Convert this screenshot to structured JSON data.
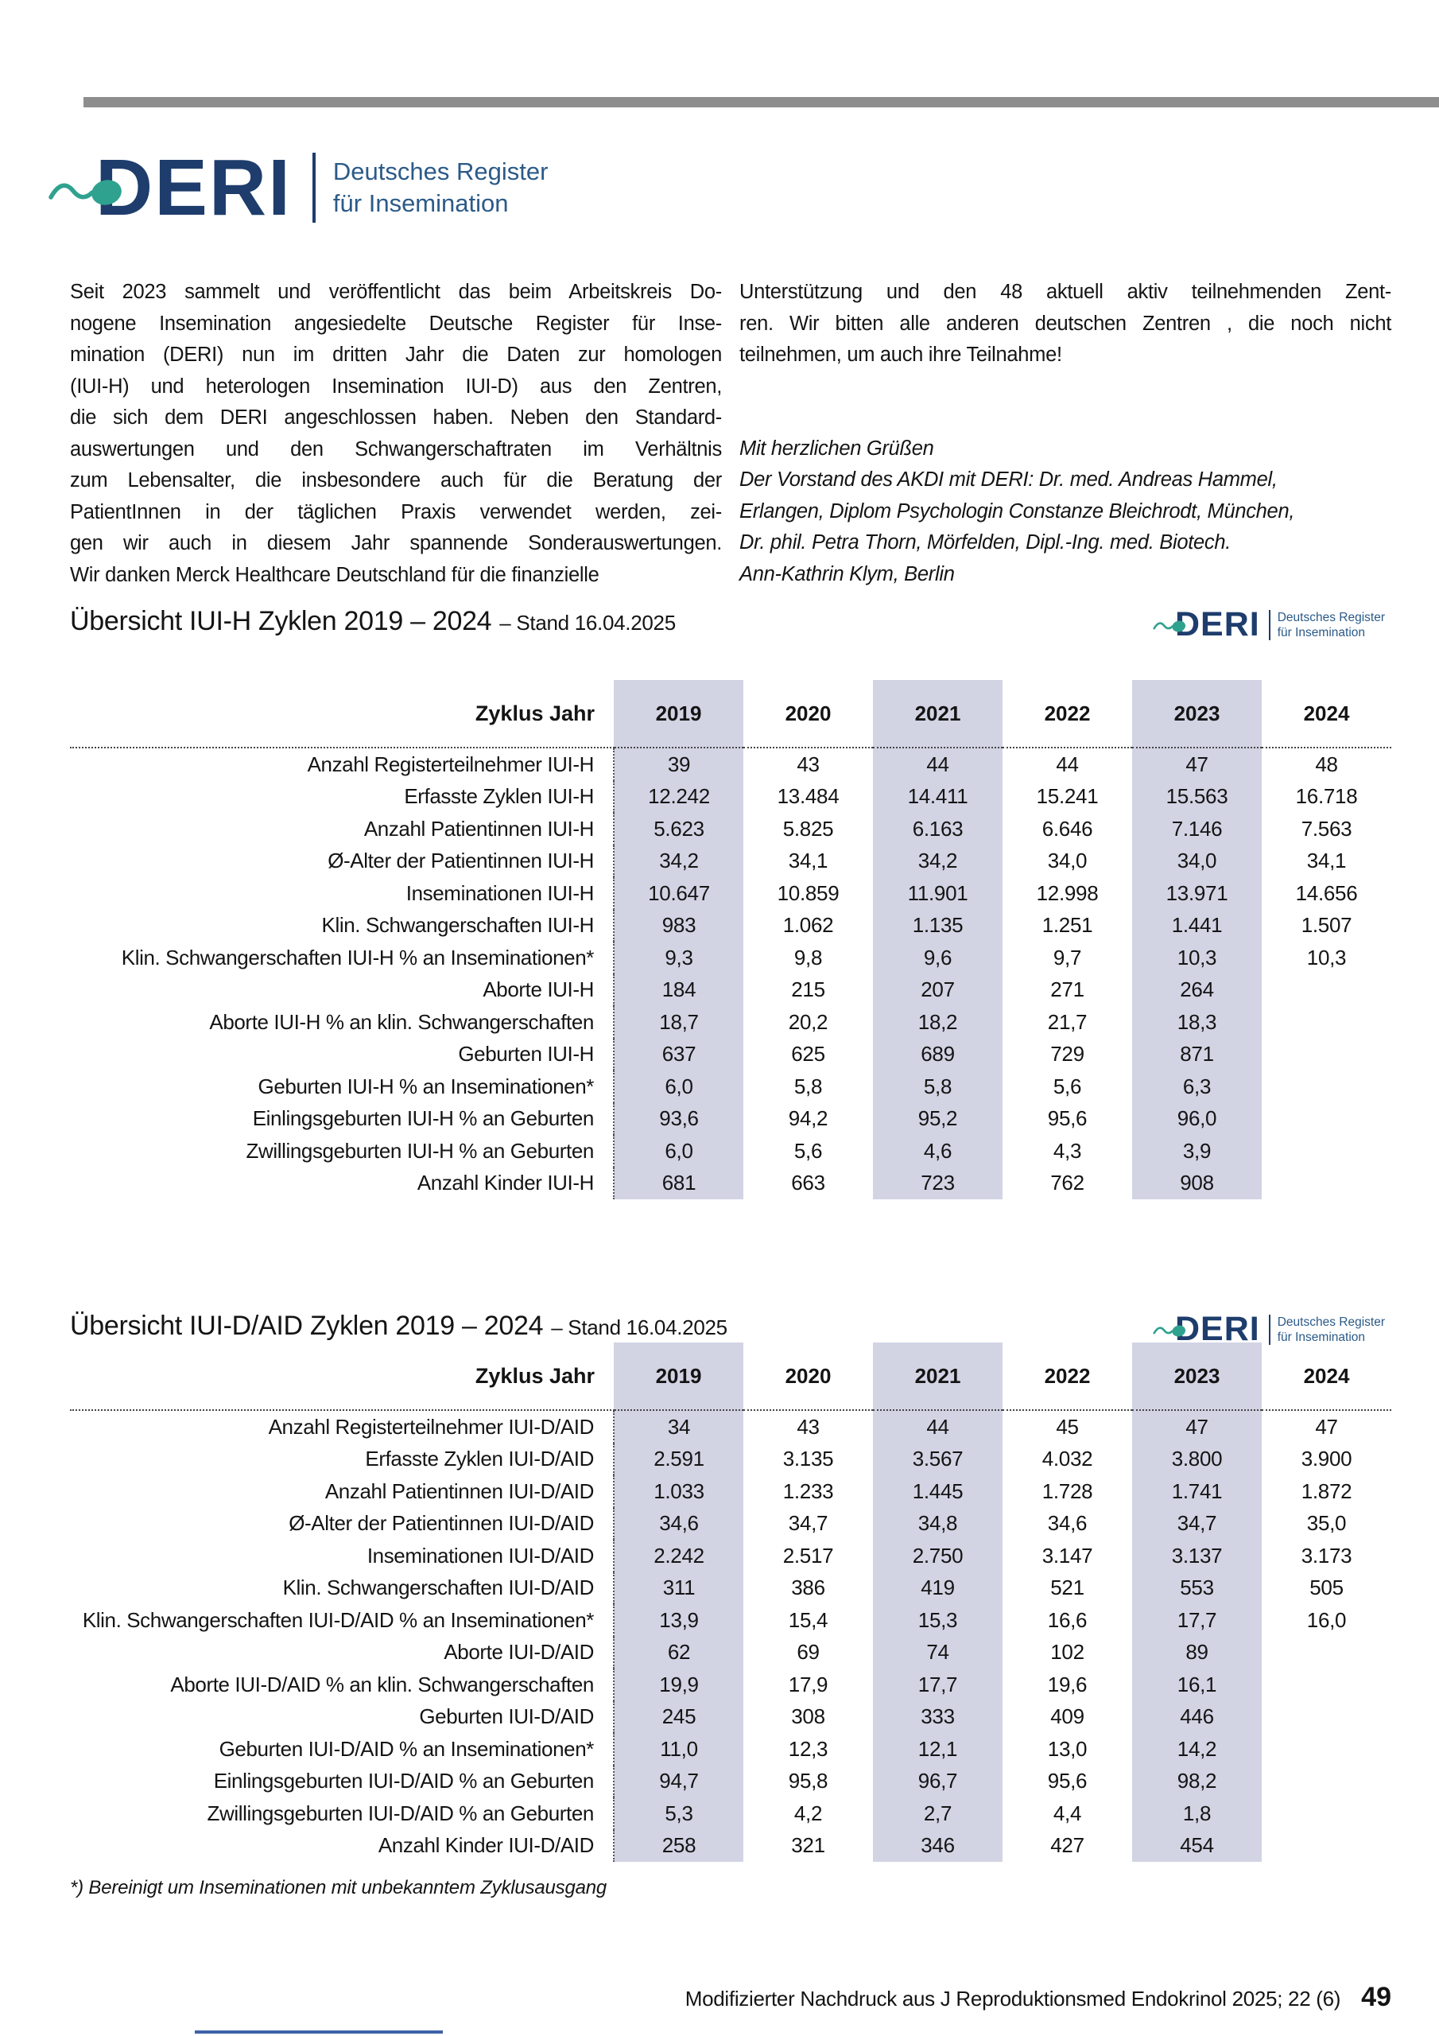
{
  "colors": {
    "navy": "#1e3d6c",
    "blue": "#2b5a88",
    "teal": "#2fa28f",
    "shade": "#d2d4e4",
    "bar_gray": "#8e8e8e"
  },
  "logo": {
    "acronym": "DERI",
    "tagline1": "Deutsches Register",
    "tagline2": "für Insemination"
  },
  "intro": {
    "left_lines": [
      "Seit 2023 sammelt und veröffentlicht das beim Arbeitskreis Do-",
      "nogene Insemination angesiedelte Deutsche Register für Inse-",
      "mination (DERI) nun im dritten Jahr die Daten zur homologen",
      "(IUI-H) und heterologen Insemination IUI-D) aus den Zentren,",
      "die sich dem DERI angeschlossen haben. Neben den Standard-",
      "auswertungen und den Schwangerschaftraten im Verhältnis",
      "zum Lebensalter, die insbesondere auch für die Beratung der",
      "PatientInnen in der täglichen Praxis verwendet werden, zei-",
      "gen wir auch in diesem Jahr spannende Sonderauswertungen.",
      "Wir danken Merck Healthcare Deutschland für die finanzielle"
    ],
    "right_lines": [
      "Unterstützung und den 48 aktuell aktiv teilnehmenden Zent-",
      "ren. Wir bitten alle anderen deutschen Zentren , die noch nicht",
      "teilnehmen, um auch ihre Teilnahme!"
    ],
    "closing_lines": [
      "Mit herzlichen Grüßen",
      "Der Vorstand des AKDI mit DERI: Dr. med. Andreas Hammel,",
      "Erlangen, Diplom Psychologin Constanze Bleichrodt, München,",
      "Dr. phil. Petra Thorn, Mörfelden, Dipl.-Ing. med. Biotech.",
      "Ann-Kathrin Klym, Berlin"
    ]
  },
  "table1": {
    "title": "Übersicht IUI-H Zyklen 2019 – 2024",
    "stand": "– Stand 16.04.2025",
    "header_label": "Zyklus Jahr",
    "years": [
      "2019",
      "2020",
      "2021",
      "2022",
      "2023",
      "2024"
    ],
    "rows": [
      {
        "label": "Anzahl Registerteilnehmer IUI-H",
        "values": [
          "39",
          "43",
          "44",
          "44",
          "47",
          "48"
        ]
      },
      {
        "label": "Erfasste Zyklen IUI-H",
        "values": [
          "12.242",
          "13.484",
          "14.411",
          "15.241",
          "15.563",
          "16.718"
        ]
      },
      {
        "label": "Anzahl Patientinnen IUI-H",
        "values": [
          "5.623",
          "5.825",
          "6.163",
          "6.646",
          "7.146",
          "7.563"
        ]
      },
      {
        "label": "Ø-Alter der Patientinnen IUI-H",
        "values": [
          "34,2",
          "34,1",
          "34,2",
          "34,0",
          "34,0",
          "34,1"
        ]
      },
      {
        "label": "Inseminationen IUI-H",
        "values": [
          "10.647",
          "10.859",
          "11.901",
          "12.998",
          "13.971",
          "14.656"
        ]
      },
      {
        "label": "Klin. Schwangerschaften IUI-H",
        "values": [
          "983",
          "1.062",
          "1.135",
          "1.251",
          "1.441",
          "1.507"
        ]
      },
      {
        "label": "Klin. Schwangerschaften IUI-H % an Inseminationen*",
        "values": [
          "9,3",
          "9,8",
          "9,6",
          "9,7",
          "10,3",
          "10,3"
        ]
      },
      {
        "label": "Aborte IUI-H",
        "values": [
          "184",
          "215",
          "207",
          "271",
          "264",
          ""
        ]
      },
      {
        "label": "Aborte IUI-H % an klin. Schwangerschaften",
        "values": [
          "18,7",
          "20,2",
          "18,2",
          "21,7",
          "18,3",
          ""
        ]
      },
      {
        "label": "Geburten IUI-H",
        "values": [
          "637",
          "625",
          "689",
          "729",
          "871",
          ""
        ]
      },
      {
        "label": "Geburten IUI-H % an Inseminationen*",
        "values": [
          "6,0",
          "5,8",
          "5,8",
          "5,6",
          "6,3",
          ""
        ]
      },
      {
        "label": "Einlingsgeburten IUI-H % an Geburten",
        "values": [
          "93,6",
          "94,2",
          "95,2",
          "95,6",
          "96,0",
          ""
        ]
      },
      {
        "label": "Zwillingsgeburten IUI-H % an Geburten",
        "values": [
          "6,0",
          "5,6",
          "4,6",
          "4,3",
          "3,9",
          ""
        ]
      },
      {
        "label": "Anzahl Kinder IUI-H",
        "values": [
          "681",
          "663",
          "723",
          "762",
          "908",
          ""
        ]
      }
    ]
  },
  "table2": {
    "title": "Übersicht IUI-D/AID Zyklen 2019 – 2024",
    "stand": "– Stand 16.04.2025",
    "header_label": "Zyklus Jahr",
    "years": [
      "2019",
      "2020",
      "2021",
      "2022",
      "2023",
      "2024"
    ],
    "rows": [
      {
        "label": "Anzahl Registerteilnehmer IUI-D/AID",
        "values": [
          "34",
          "43",
          "44",
          "45",
          "47",
          "47"
        ]
      },
      {
        "label": "Erfasste Zyklen IUI-D/AID",
        "values": [
          "2.591",
          "3.135",
          "3.567",
          "4.032",
          "3.800",
          "3.900"
        ]
      },
      {
        "label": "Anzahl Patientinnen IUI-D/AID",
        "values": [
          "1.033",
          "1.233",
          "1.445",
          "1.728",
          "1.741",
          "1.872"
        ]
      },
      {
        "label": "Ø-Alter der Patientinnen IUI-D/AID",
        "values": [
          "34,6",
          "34,7",
          "34,8",
          "34,6",
          "34,7",
          "35,0"
        ]
      },
      {
        "label": "Inseminationen IUI-D/AID",
        "values": [
          "2.242",
          "2.517",
          "2.750",
          "3.147",
          "3.137",
          "3.173"
        ]
      },
      {
        "label": "Klin. Schwangerschaften IUI-D/AID",
        "values": [
          "311",
          "386",
          "419",
          "521",
          "553",
          "505"
        ]
      },
      {
        "label": "Klin. Schwangerschaften IUI-D/AID % an Inseminationen*",
        "values": [
          "13,9",
          "15,4",
          "15,3",
          "16,6",
          "17,7",
          "16,0"
        ]
      },
      {
        "label": "Aborte IUI-D/AID",
        "values": [
          "62",
          "69",
          "74",
          "102",
          "89",
          ""
        ]
      },
      {
        "label": "Aborte IUI-D/AID % an klin. Schwangerschaften",
        "values": [
          "19,9",
          "17,9",
          "17,7",
          "19,6",
          "16,1",
          ""
        ]
      },
      {
        "label": "Geburten IUI-D/AID",
        "values": [
          "245",
          "308",
          "333",
          "409",
          "446",
          ""
        ]
      },
      {
        "label": "Geburten IUI-D/AID % an Inseminationen*",
        "values": [
          "11,0",
          "12,3",
          "12,1",
          "13,0",
          "14,2",
          ""
        ]
      },
      {
        "label": "Einlingsgeburten IUI-D/AID % an Geburten",
        "values": [
          "94,7",
          "95,8",
          "96,7",
          "95,6",
          "98,2",
          ""
        ]
      },
      {
        "label": "Zwillingsgeburten IUI-D/AID % an Geburten",
        "values": [
          "5,3",
          "4,2",
          "2,7",
          "4,4",
          "1,8",
          ""
        ]
      },
      {
        "label": "Anzahl Kinder IUI-D/AID",
        "values": [
          "258",
          "321",
          "346",
          "427",
          "454",
          ""
        ]
      }
    ]
  },
  "footnote": "*) Bereinigt um Inseminationen mit unbekanntem Zyklusausgang",
  "footer": {
    "text": "Modifizierter Nachdruck aus J Reproduktionsmed Endokrinol 2025; 22 (6)",
    "page": "49"
  }
}
